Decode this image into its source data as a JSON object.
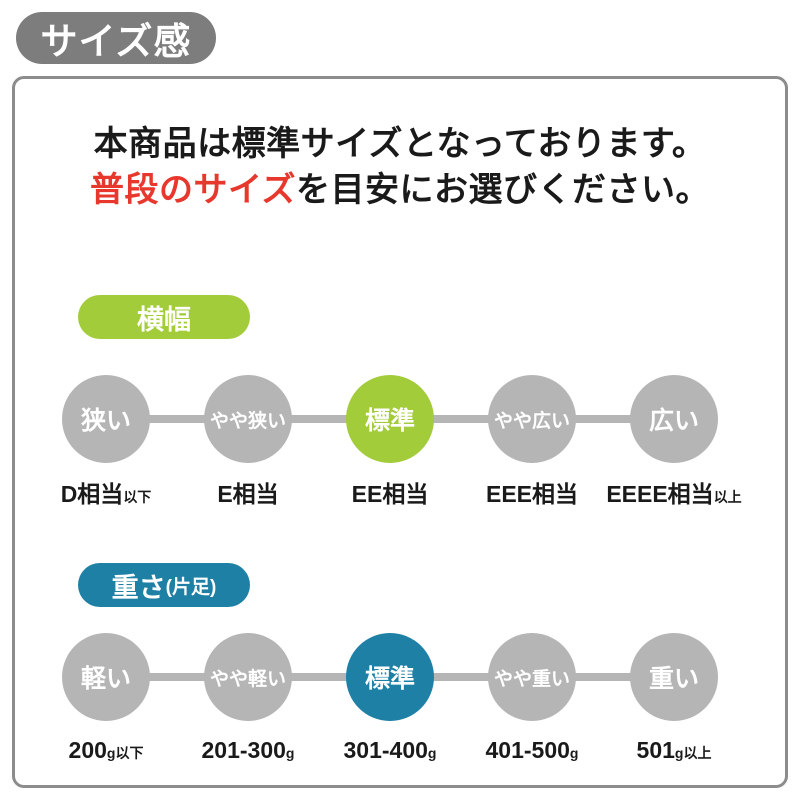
{
  "title_badge": "サイズ感",
  "intro": {
    "line1": "本商品は標準サイズとなっております。",
    "line2_highlight": "普段のサイズ",
    "line2_rest": "を目安にお選びください。"
  },
  "sections": [
    {
      "badge_main": "横幅",
      "badge_suffix": "",
      "accent_color": "#a3cc3b",
      "steps": [
        {
          "label": "狭い",
          "active": false,
          "value_main": "D相当",
          "value_suffix": "以下"
        },
        {
          "label": "やや狭い",
          "active": false,
          "value_main": "E相当",
          "value_suffix": ""
        },
        {
          "label": "標準",
          "active": true,
          "value_main": "EE相当",
          "value_suffix": ""
        },
        {
          "label": "やや広い",
          "active": false,
          "value_main": "EEE相当",
          "value_suffix": ""
        },
        {
          "label": "広い",
          "active": false,
          "value_main": "EEEE相当",
          "value_suffix": "以上"
        }
      ]
    },
    {
      "badge_main": "重さ",
      "badge_suffix": "(片足)",
      "accent_color": "#1f80a6",
      "steps": [
        {
          "label": "軽い",
          "active": false,
          "value_main": "200",
          "value_suffix": "g以下"
        },
        {
          "label": "やや軽い",
          "active": false,
          "value_main": "201-300",
          "value_suffix": "g"
        },
        {
          "label": "標準",
          "active": true,
          "value_main": "301-400",
          "value_suffix": "g"
        },
        {
          "label": "やや重い",
          "active": false,
          "value_main": "401-500",
          "value_suffix": "g"
        },
        {
          "label": "重い",
          "active": false,
          "value_main": "501",
          "value_suffix": "g以上"
        }
      ]
    }
  ],
  "colors": {
    "badge_gray": "#7d7d7d",
    "card_border": "#8c8c8c",
    "circle_gray": "#b5b5b5",
    "accent_green": "#a3cc3b",
    "accent_teal": "#1f80a6",
    "highlight_red": "#e8382d",
    "text_black": "#1a1a1a"
  }
}
